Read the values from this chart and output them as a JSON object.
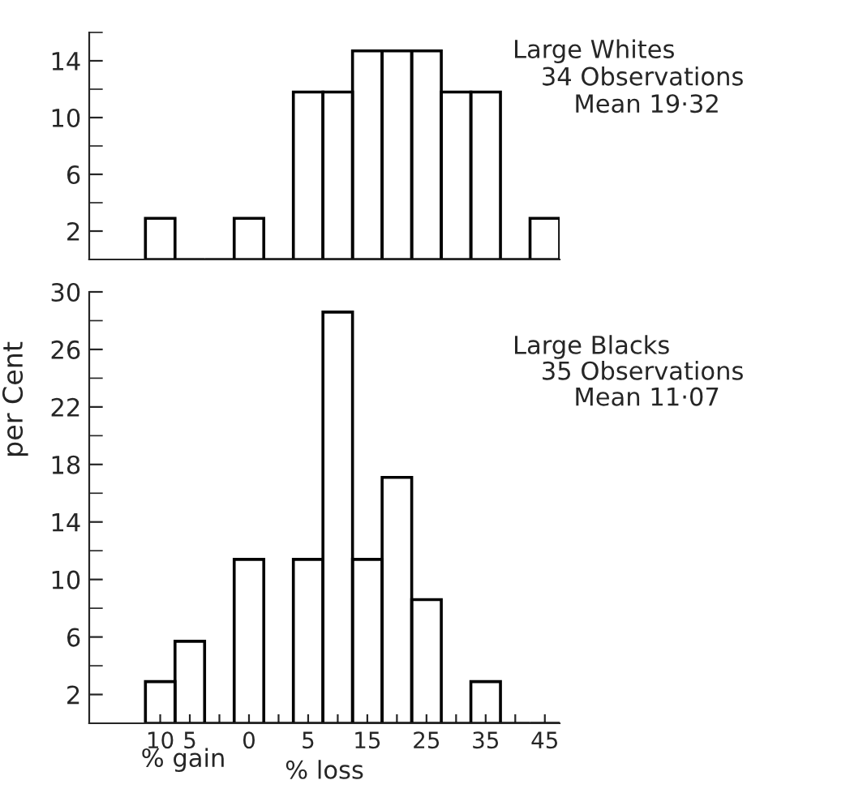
{
  "chart_data": [
    {
      "type": "bar",
      "categories": [
        "10",
        "5",
        null,
        "0",
        null,
        "5",
        null,
        "15",
        null,
        "25",
        null,
        "35",
        null,
        "45"
      ],
      "values": [
        2.9,
        0,
        0,
        2.9,
        0,
        11.8,
        11.8,
        14.7,
        14.7,
        14.7,
        11.8,
        11.8,
        0,
        2.9
      ],
      "color": "#000000",
      "ylim": [
        0,
        16
      ],
      "yticks": [
        2,
        6,
        10,
        14
      ],
      "tick_labels": "y",
      "annotations": [
        "Large Whites",
        "34 Observations",
        "Mean 19·32"
      ]
    },
    {
      "type": "bar",
      "categories": [
        "10",
        "5",
        null,
        "0",
        null,
        "5",
        null,
        "15",
        null,
        "25",
        null,
        "35",
        null,
        "45"
      ],
      "values": [
        2.9,
        5.7,
        0,
        11.4,
        0,
        11.4,
        28.6,
        11.4,
        17.1,
        8.6,
        0,
        2.9,
        0,
        0
      ],
      "color": "#000000",
      "ylim": [
        0,
        30
      ],
      "yticks": [
        2,
        6,
        10,
        14,
        18,
        22,
        26,
        30
      ],
      "xlabel": "% loss",
      "ylabel": "per Cent",
      "annotations": [
        "Large Blacks",
        "35 Observations",
        "Mean 11·07",
        "% gain"
      ]
    }
  ]
}
